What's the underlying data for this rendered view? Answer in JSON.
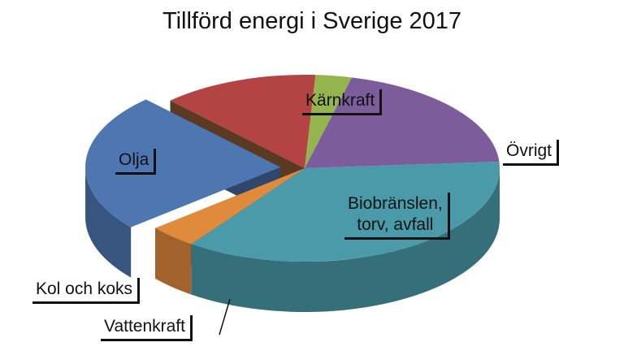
{
  "chart_data": {
    "type": "pie",
    "title": "Tillförd  energi i Sverige 2017",
    "slices": [
      {
        "label": "Kärnkraft",
        "value": 36,
        "color": "#4a9aaa"
      },
      {
        "label": "Övrigt",
        "value": 4,
        "color": "#e08a3c"
      },
      {
        "label": "Biobränslen,\ntorv, avfall",
        "value": 24,
        "color": "#4e76b0",
        "exploded": true
      },
      {
        "label": "Vattenkraft",
        "value": 13,
        "color": "#b44444"
      },
      {
        "label": "Kol och koks",
        "value": 3,
        "color": "#94b44e"
      },
      {
        "label": "Olja",
        "value": 20,
        "color": "#7d5c9c"
      }
    ]
  }
}
